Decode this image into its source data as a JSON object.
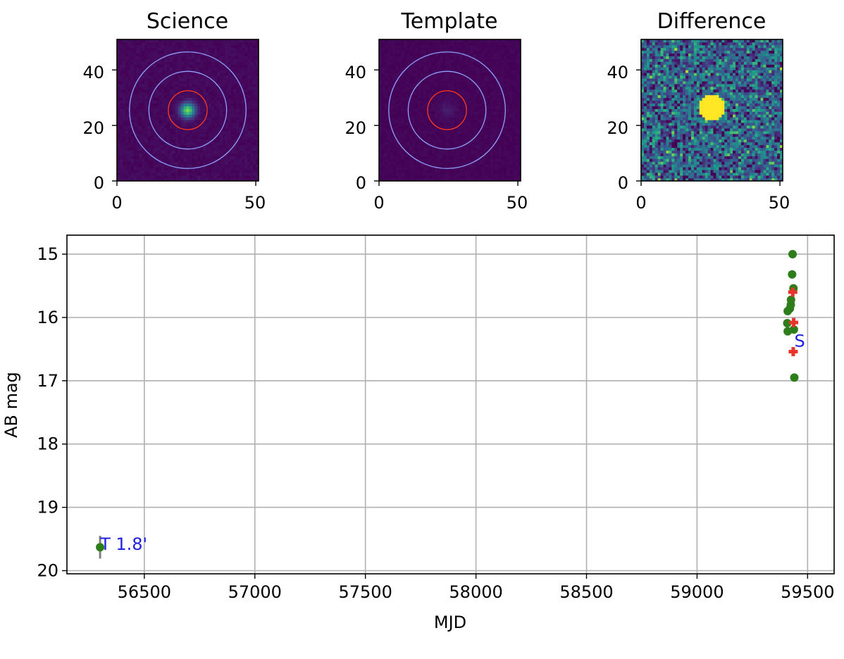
{
  "colors": {
    "background": "#ffffff",
    "axis": "#000000",
    "grid": "#b0b0b0",
    "image_dark": "#440154",
    "aperture_inner": "#ff3a1a",
    "annulus": "#8fa0ff",
    "detection_marker": "#2e7d1b",
    "upper_limit_marker": "#e8342a",
    "error_bar": "#808080",
    "annotation": "#1f1fe0"
  },
  "chart_data": [
    {
      "type": "heatmap",
      "title": "Science",
      "xlim": [
        0,
        51
      ],
      "ylim": [
        0,
        51
      ],
      "xticks": [
        "0",
        "50"
      ],
      "yticks": [
        "0",
        "20",
        "40"
      ],
      "colormap": "viridis",
      "source": {
        "x": 25,
        "y": 25,
        "sigma": 1.8,
        "peak": 0.8
      },
      "apertures": [
        {
          "radius": 7,
          "color": "aperture_inner"
        },
        {
          "radius": 14,
          "color": "annulus"
        },
        {
          "radius": 21,
          "color": "annulus"
        }
      ]
    },
    {
      "type": "heatmap",
      "title": "Template",
      "xlim": [
        0,
        51
      ],
      "ylim": [
        0,
        51
      ],
      "xticks": [
        "0",
        "50"
      ],
      "yticks": [
        "0",
        "20",
        "40"
      ],
      "colormap": "viridis",
      "source": {
        "x": 24,
        "y": 25,
        "sigma": 2.2,
        "peak": 0.06
      },
      "apertures": [
        {
          "radius": 7,
          "color": "aperture_inner"
        },
        {
          "radius": 14,
          "color": "annulus"
        },
        {
          "radius": 21,
          "color": "annulus"
        }
      ]
    },
    {
      "type": "heatmap",
      "title": "Difference",
      "xlim": [
        0,
        51
      ],
      "ylim": [
        0,
        51
      ],
      "xticks": [
        "0",
        "50"
      ],
      "yticks": [
        "0",
        "20",
        "40"
      ],
      "colormap": "viridis",
      "source": {
        "x": 25,
        "y": 26,
        "sigma": 3.2,
        "peak": 1.0
      },
      "apertures": []
    },
    {
      "type": "scatter",
      "title": "",
      "xlabel": "MJD",
      "ylabel": "AB mag",
      "xlim": [
        56150,
        59620
      ],
      "ylim": [
        20.05,
        14.7
      ],
      "y_inverted": true,
      "xticks": [
        56500,
        57000,
        57500,
        58000,
        58500,
        59000,
        59500
      ],
      "yticks": [
        15,
        16,
        17,
        18,
        19,
        20
      ],
      "grid": true,
      "series": [
        {
          "marker": "circle",
          "color": "detection_marker",
          "points": [
            {
              "x": 56300,
              "y": 19.63,
              "err": 0.18
            },
            {
              "x": 59432,
              "y": 15.0
            },
            {
              "x": 59430,
              "y": 15.32
            },
            {
              "x": 59436,
              "y": 15.54
            },
            {
              "x": 59425,
              "y": 15.72
            },
            {
              "x": 59424,
              "y": 15.8
            },
            {
              "x": 59420,
              "y": 15.86
            },
            {
              "x": 59410,
              "y": 15.9
            },
            {
              "x": 59408,
              "y": 16.09
            },
            {
              "x": 59410,
              "y": 16.22
            },
            {
              "x": 59438,
              "y": 16.19
            },
            {
              "x": 59440,
              "y": 16.95
            }
          ]
        },
        {
          "marker": "plus",
          "color": "upper_limit_marker",
          "points": [
            {
              "x": 59433,
              "y": 15.6
            },
            {
              "x": 59437,
              "y": 16.08
            },
            {
              "x": 59435,
              "y": 16.54
            }
          ]
        }
      ],
      "annotations": [
        {
          "text": "T 1.8'",
          "x": 56300,
          "y": 19.63
        },
        {
          "text": "S",
          "x": 59440,
          "y": 16.42
        }
      ]
    }
  ]
}
